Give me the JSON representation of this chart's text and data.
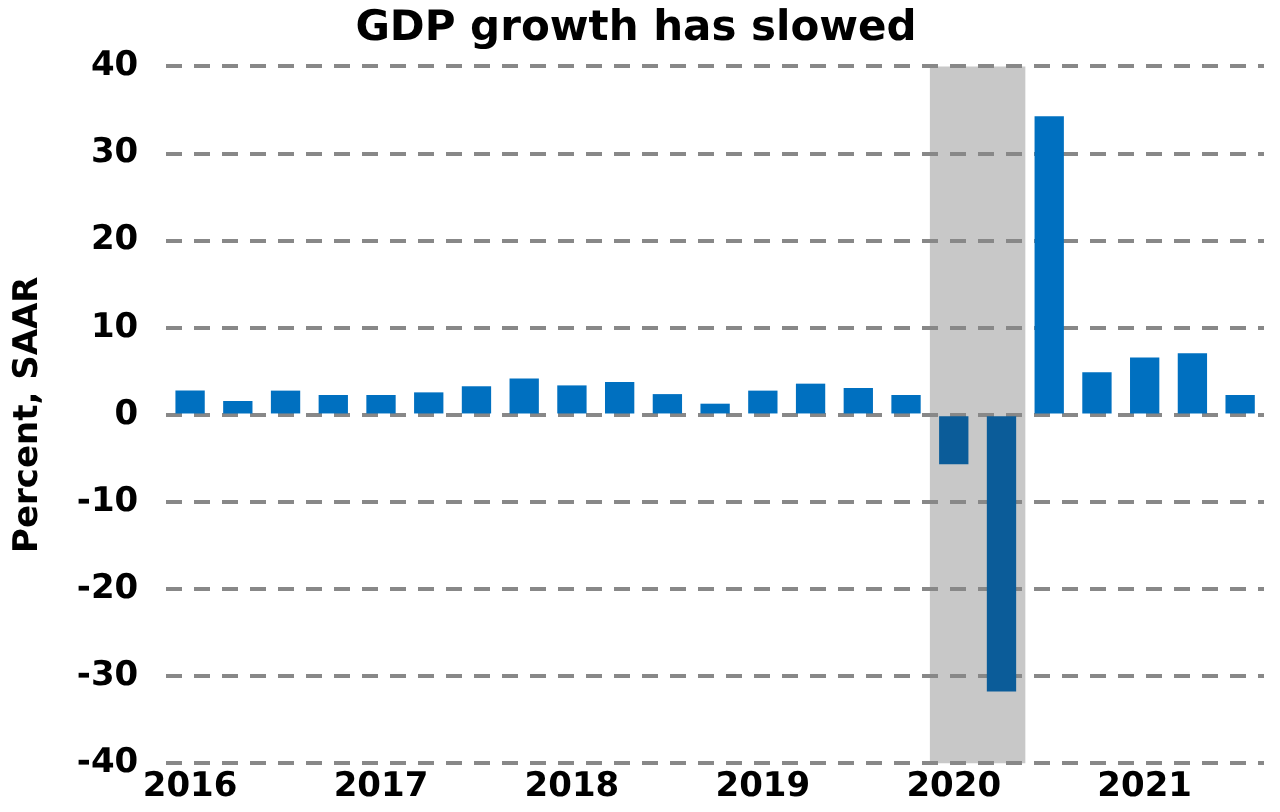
{
  "chart_data": {
    "type": "bar",
    "title": "GDP growth has slowed",
    "ylabel": "Percent, SAAR",
    "x": [
      2016,
      2016.25,
      2016.5,
      2016.75,
      2017,
      2017.25,
      2017.5,
      2017.75,
      2018,
      2018.25,
      2018.5,
      2018.75,
      2019,
      2019.25,
      2019.5,
      2019.75,
      2020,
      2020.25,
      2020.5,
      2020.75,
      2021,
      2021.25,
      2021.5
    ],
    "values": [
      2.7,
      1.5,
      2.7,
      2.2,
      2.2,
      2.5,
      3.2,
      4.1,
      3.3,
      3.7,
      2.3,
      1.2,
      2.7,
      3.5,
      3.0,
      2.2,
      -5.6,
      -31.7,
      34.2,
      4.8,
      6.5,
      7.0,
      2.2
    ],
    "colors": [
      "#0070c0",
      "#0070c0",
      "#0070c0",
      "#0070c0",
      "#0070c0",
      "#0070c0",
      "#0070c0",
      "#0070c0",
      "#0070c0",
      "#0070c0",
      "#0070c0",
      "#0070c0",
      "#0070c0",
      "#0070c0",
      "#0070c0",
      "#0070c0",
      "#0b5c99",
      "#0b5c99",
      "#0070c0",
      "#0070c0",
      "#0070c0",
      "#0070c0",
      "#0070c0"
    ],
    "xlim": [
      2015.875,
      2021.625
    ],
    "xticks": [
      2016,
      2017,
      2018,
      2019,
      2020,
      2021
    ],
    "ylim": [
      -40,
      40
    ],
    "yticks": [
      -40,
      -30,
      -20,
      -10,
      0,
      10,
      20,
      30,
      40
    ],
    "grid": "y",
    "bands": [
      {
        "axis": "x",
        "from": 2019.875,
        "to": 2020.375,
        "color": "#c8c8c8"
      }
    ]
  }
}
